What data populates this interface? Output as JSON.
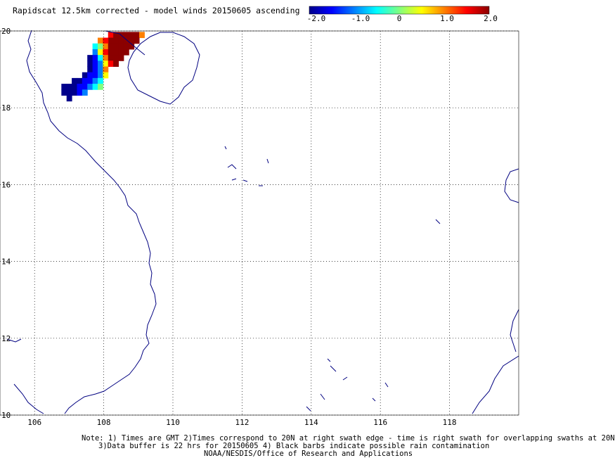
{
  "title": "Rapidscat 12.5km corrected - model winds 20150605 ascending",
  "colorbar": {
    "ticks": [
      "-2.0",
      "-1.0",
      "0",
      "1.0",
      "2.0"
    ],
    "range": [
      -2.0,
      2.0
    ],
    "colors": [
      "#00008b",
      "#0000ff",
      "#0080ff",
      "#00ffff",
      "#80ff80",
      "#ffff00",
      "#ff8000",
      "#ff0000",
      "#8b0000"
    ]
  },
  "map": {
    "lat_range": [
      10,
      20
    ],
    "lon_range": [
      105,
      120
    ],
    "lat_labels": [
      "20",
      "18",
      "16",
      "14",
      "12",
      "10"
    ],
    "lon_labels": [
      "106",
      "108",
      "110",
      "112",
      "114",
      "116",
      "118"
    ],
    "grid": "dotted",
    "coastline_color": "#000080"
  },
  "wind_diff_cells": [
    {
      "lon": 108.2,
      "lat": 19.9,
      "v": 1.5
    },
    {
      "lon": 108.35,
      "lat": 19.9,
      "v": 2.0
    },
    {
      "lon": 108.5,
      "lat": 19.9,
      "v": 2.0
    },
    {
      "lon": 108.65,
      "lat": 19.9,
      "v": 1.9
    },
    {
      "lon": 108.8,
      "lat": 19.9,
      "v": 1.9
    },
    {
      "lon": 108.95,
      "lat": 19.9,
      "v": 1.9
    },
    {
      "lon": 109.1,
      "lat": 19.9,
      "v": 1.2
    },
    {
      "lon": 108.2,
      "lat": 19.75,
      "v": 2.0
    },
    {
      "lon": 108.35,
      "lat": 19.75,
      "v": 2.0
    },
    {
      "lon": 108.5,
      "lat": 19.75,
      "v": 1.9
    },
    {
      "lon": 108.65,
      "lat": 19.75,
      "v": 1.9
    },
    {
      "lon": 108.8,
      "lat": 19.75,
      "v": 1.9
    },
    {
      "lon": 108.95,
      "lat": 19.75,
      "v": 1.8
    },
    {
      "lon": 107.9,
      "lat": 19.75,
      "v": 0.8
    },
    {
      "lon": 108.05,
      "lat": 19.75,
      "v": 1.5
    },
    {
      "lon": 107.75,
      "lat": 19.6,
      "v": -0.5
    },
    {
      "lon": 107.9,
      "lat": 19.6,
      "v": 0.2
    },
    {
      "lon": 108.05,
      "lat": 19.6,
      "v": 1.2
    },
    {
      "lon": 108.2,
      "lat": 19.6,
      "v": 2.0
    },
    {
      "lon": 108.35,
      "lat": 19.6,
      "v": 1.9
    },
    {
      "lon": 108.5,
      "lat": 19.6,
      "v": 1.9
    },
    {
      "lon": 108.65,
      "lat": 19.6,
      "v": 1.9
    },
    {
      "lon": 108.8,
      "lat": 19.6,
      "v": 1.8
    },
    {
      "lon": 107.75,
      "lat": 19.45,
      "v": -0.9
    },
    {
      "lon": 107.9,
      "lat": 19.45,
      "v": 0.6
    },
    {
      "lon": 108.05,
      "lat": 19.45,
      "v": 1.6
    },
    {
      "lon": 108.2,
      "lat": 19.45,
      "v": 2.0
    },
    {
      "lon": 108.35,
      "lat": 19.45,
      "v": 1.9
    },
    {
      "lon": 108.5,
      "lat": 19.45,
      "v": 1.9
    },
    {
      "lon": 108.65,
      "lat": 19.45,
      "v": 1.8
    },
    {
      "lon": 107.6,
      "lat": 19.3,
      "v": -1.8
    },
    {
      "lon": 107.75,
      "lat": 19.3,
      "v": -1.5
    },
    {
      "lon": 107.9,
      "lat": 19.3,
      "v": -0.6
    },
    {
      "lon": 108.05,
      "lat": 19.3,
      "v": 1.0
    },
    {
      "lon": 108.2,
      "lat": 19.3,
      "v": 1.8
    },
    {
      "lon": 108.35,
      "lat": 19.3,
      "v": 1.9
    },
    {
      "lon": 108.5,
      "lat": 19.3,
      "v": 1.8
    },
    {
      "lon": 107.6,
      "lat": 19.15,
      "v": -1.9
    },
    {
      "lon": 107.75,
      "lat": 19.15,
      "v": -1.6
    },
    {
      "lon": 107.9,
      "lat": 19.15,
      "v": -1.0
    },
    {
      "lon": 108.05,
      "lat": 19.15,
      "v": 0.3
    },
    {
      "lon": 108.2,
      "lat": 19.15,
      "v": 1.3
    },
    {
      "lon": 108.35,
      "lat": 19.15,
      "v": 1.9
    },
    {
      "lon": 107.6,
      "lat": 19.0,
      "v": -1.9
    },
    {
      "lon": 107.75,
      "lat": 19.0,
      "v": -1.7
    },
    {
      "lon": 107.9,
      "lat": 19.0,
      "v": -0.9
    },
    {
      "lon": 108.05,
      "lat": 19.0,
      "v": 0.8
    },
    {
      "lon": 107.45,
      "lat": 18.85,
      "v": -1.9
    },
    {
      "lon": 107.6,
      "lat": 18.85,
      "v": -1.6
    },
    {
      "lon": 107.75,
      "lat": 18.85,
      "v": -1.4
    },
    {
      "lon": 107.9,
      "lat": 18.85,
      "v": -0.8
    },
    {
      "lon": 108.05,
      "lat": 18.85,
      "v": 0.5
    },
    {
      "lon": 107.15,
      "lat": 18.7,
      "v": -2.0
    },
    {
      "lon": 107.3,
      "lat": 18.7,
      "v": -1.9
    },
    {
      "lon": 107.45,
      "lat": 18.7,
      "v": -1.7
    },
    {
      "lon": 107.6,
      "lat": 18.7,
      "v": -1.4
    },
    {
      "lon": 107.75,
      "lat": 18.7,
      "v": -0.9
    },
    {
      "lon": 107.9,
      "lat": 18.7,
      "v": -0.3
    },
    {
      "lon": 106.85,
      "lat": 18.55,
      "v": -2.0
    },
    {
      "lon": 107.0,
      "lat": 18.55,
      "v": -2.0
    },
    {
      "lon": 107.15,
      "lat": 18.55,
      "v": -1.9
    },
    {
      "lon": 107.3,
      "lat": 18.55,
      "v": -1.6
    },
    {
      "lon": 107.45,
      "lat": 18.55,
      "v": -1.4
    },
    {
      "lon": 107.6,
      "lat": 18.55,
      "v": -1.0
    },
    {
      "lon": 107.75,
      "lat": 18.55,
      "v": -0.6
    },
    {
      "lon": 107.9,
      "lat": 18.55,
      "v": 0.1
    },
    {
      "lon": 106.85,
      "lat": 18.4,
      "v": -2.0
    },
    {
      "lon": 107.0,
      "lat": 18.4,
      "v": -2.0
    },
    {
      "lon": 107.15,
      "lat": 18.4,
      "v": -1.8
    },
    {
      "lon": 107.3,
      "lat": 18.4,
      "v": -1.5
    },
    {
      "lon": 107.45,
      "lat": 18.4,
      "v": -1.1
    },
    {
      "lon": 107.0,
      "lat": 18.25,
      "v": -2.0
    }
  ],
  "footer": {
    "line1": "Note: 1) Times are GMT 2)Times correspond to 20N at right swath edge - time is right swath for overlapping swaths at 20N",
    "line2": "3)Data buffer is 22 hrs for 20150605 4) Black barbs indicate possible rain contamination",
    "line3": "NOAA/NESDIS/Office of Research and Applications"
  }
}
